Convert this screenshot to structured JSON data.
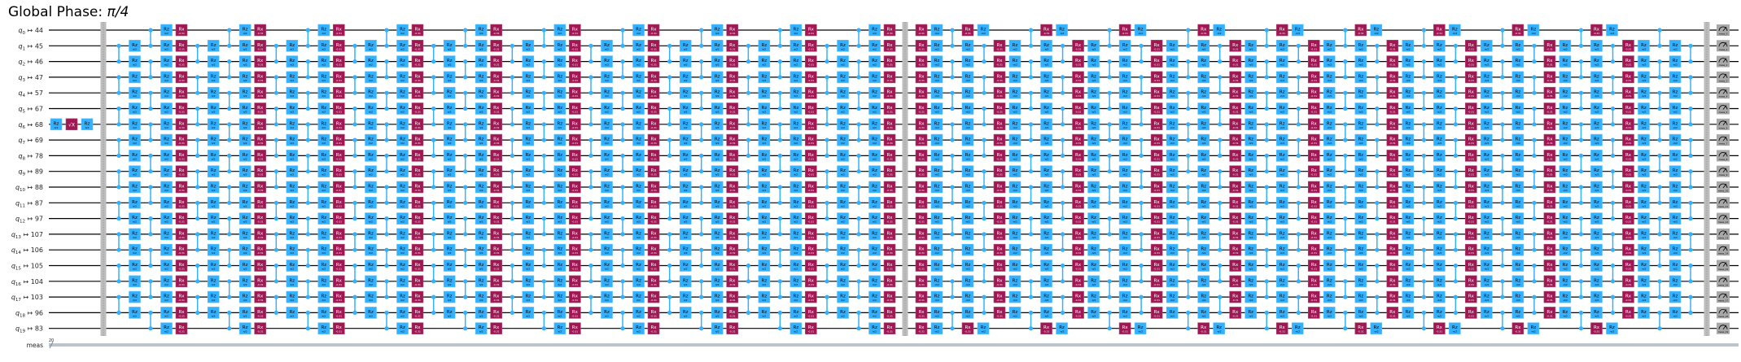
{
  "title": {
    "prefix": "Global Phase: ",
    "value": "π/4"
  },
  "qubits": [
    {
      "label": "q",
      "index": "0",
      "phys": "44"
    },
    {
      "label": "q",
      "index": "1",
      "phys": "45"
    },
    {
      "label": "q",
      "index": "2",
      "phys": "46"
    },
    {
      "label": "q",
      "index": "3",
      "phys": "47"
    },
    {
      "label": "q",
      "index": "4",
      "phys": "57"
    },
    {
      "label": "q",
      "index": "5",
      "phys": "67"
    },
    {
      "label": "q",
      "index": "6",
      "phys": "68"
    },
    {
      "label": "q",
      "index": "7",
      "phys": "69"
    },
    {
      "label": "q",
      "index": "8",
      "phys": "78"
    },
    {
      "label": "q",
      "index": "9",
      "phys": "89"
    },
    {
      "label": "q",
      "index": "10",
      "phys": "88"
    },
    {
      "label": "q",
      "index": "11",
      "phys": "87"
    },
    {
      "label": "q",
      "index": "12",
      "phys": "97"
    },
    {
      "label": "q",
      "index": "13",
      "phys": "107"
    },
    {
      "label": "q",
      "index": "14",
      "phys": "106"
    },
    {
      "label": "q",
      "index": "15",
      "phys": "105"
    },
    {
      "label": "q",
      "index": "16",
      "phys": "104"
    },
    {
      "label": "q",
      "index": "17",
      "phys": "103"
    },
    {
      "label": "q",
      "index": "18",
      "phys": "96"
    },
    {
      "label": "q",
      "index": "19",
      "phys": "83"
    }
  ],
  "mapping_arrow": "↦",
  "classical": {
    "label": "meas",
    "width": "20"
  },
  "gates": {
    "rz": {
      "name": "Rz",
      "param1": "π/2",
      "param2": "-π/2"
    },
    "rx": {
      "name": "Rx",
      "param": "-0.31"
    },
    "sx": {
      "name": "√X"
    },
    "measure": {
      "prefix": "meas_"
    }
  },
  "circuit": {
    "prefix_qubit": 6,
    "block1_layers": 10,
    "block2_layers": 10
  },
  "colors": {
    "rz": "#33b1ff",
    "rx": "#9f1853",
    "cz": "#33b1ff",
    "measure": "#a8a8a8",
    "barrier": "#bdbdbd",
    "wire": "#000000",
    "classical_wire": "#778899"
  }
}
